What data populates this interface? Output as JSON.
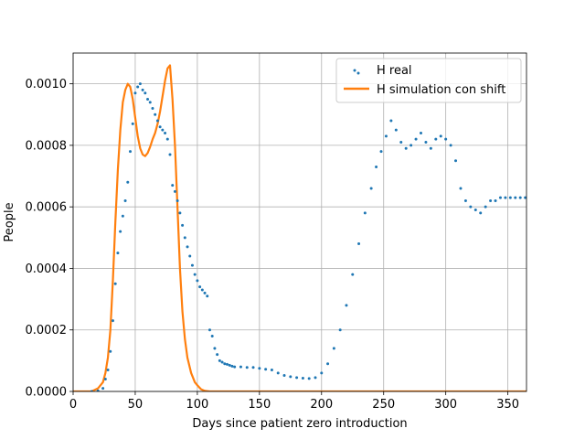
{
  "chart_data": {
    "type": "line",
    "xlabel": "Days since patient zero introduction",
    "ylabel": "People",
    "xlim": [
      0,
      365
    ],
    "ylim": [
      0,
      0.0011
    ],
    "x_ticks": [
      0,
      50,
      100,
      150,
      200,
      250,
      300,
      350
    ],
    "x_tick_labels": [
      "0",
      "50",
      "100",
      "150",
      "200",
      "250",
      "300",
      "350"
    ],
    "y_ticks": [
      0,
      0.0002,
      0.0004,
      0.0006,
      0.0008,
      0.001
    ],
    "y_tick_labels": [
      "0.0000",
      "0.0002",
      "0.0004",
      "0.0006",
      "0.0008",
      "0.0010"
    ],
    "grid": true,
    "legend_position": "top-right",
    "colors": {
      "real": "#1f77b4",
      "sim": "#ff7f0e"
    },
    "series": [
      {
        "name": "H real",
        "style": "scatter",
        "x": [
          15,
          20,
          24,
          26,
          28,
          30,
          32,
          34,
          36,
          38,
          40,
          42,
          44,
          46,
          48,
          50,
          52,
          54,
          56,
          58,
          60,
          62,
          64,
          66,
          68,
          70,
          72,
          74,
          76,
          78,
          80,
          82,
          84,
          86,
          88,
          90,
          92,
          94,
          96,
          98,
          100,
          102,
          104,
          106,
          108,
          110,
          112,
          114,
          116,
          118,
          120,
          122,
          124,
          126,
          128,
          130,
          135,
          140,
          145,
          150,
          155,
          160,
          165,
          170,
          175,
          180,
          185,
          190,
          195,
          200,
          205,
          210,
          215,
          220,
          225,
          230,
          235,
          240,
          244,
          248,
          252,
          256,
          260,
          264,
          268,
          272,
          276,
          280,
          284,
          288,
          292,
          296,
          300,
          304,
          308,
          312,
          316,
          320,
          324,
          328,
          332,
          336,
          340,
          344,
          348,
          352,
          356,
          360,
          364
        ],
        "y": [
          0,
          2e-06,
          1e-05,
          4e-05,
          7e-05,
          0.00013,
          0.00023,
          0.00035,
          0.00045,
          0.00052,
          0.00057,
          0.00062,
          0.00068,
          0.00078,
          0.00087,
          0.00097,
          0.00099,
          0.001,
          0.00098,
          0.00097,
          0.00095,
          0.00094,
          0.00092,
          0.0009,
          0.00088,
          0.00086,
          0.00085,
          0.00084,
          0.00082,
          0.00077,
          0.00067,
          0.00065,
          0.00062,
          0.00058,
          0.00054,
          0.0005,
          0.00047,
          0.00044,
          0.00041,
          0.00038,
          0.00036,
          0.00034,
          0.00033,
          0.00032,
          0.00031,
          0.0002,
          0.00018,
          0.00014,
          0.00012,
          0.0001,
          9.5e-05,
          9e-05,
          8.8e-05,
          8.5e-05,
          8.2e-05,
          8e-05,
          8e-05,
          7.8e-05,
          7.8e-05,
          7.5e-05,
          7.2e-05,
          7e-05,
          6e-05,
          5.2e-05,
          4.8e-05,
          4.5e-05,
          4.3e-05,
          4.2e-05,
          4.5e-05,
          6e-05,
          9e-05,
          0.00014,
          0.0002,
          0.00028,
          0.00038,
          0.00048,
          0.00058,
          0.00066,
          0.00073,
          0.00078,
          0.00083,
          0.00088,
          0.00085,
          0.00081,
          0.00079,
          0.0008,
          0.00082,
          0.00084,
          0.00081,
          0.00079,
          0.00082,
          0.00083,
          0.00082,
          0.0008,
          0.00075,
          0.00066,
          0.00062,
          0.0006,
          0.00059,
          0.00058,
          0.0006,
          0.00062,
          0.00062,
          0.00063,
          0.00063,
          0.00063,
          0.00063,
          0.00063,
          0.00063
        ],
        "n_visible": 109
      },
      {
        "name": "H simulation con shift",
        "style": "line",
        "x": [
          0,
          15,
          20,
          24,
          26,
          28,
          30,
          32,
          34,
          36,
          38,
          40,
          42,
          44,
          46,
          48,
          50,
          52,
          54,
          56,
          58,
          60,
          62,
          64,
          66,
          68,
          70,
          72,
          74,
          76,
          78,
          80,
          82,
          84,
          86,
          88,
          90,
          92,
          95,
          98,
          100,
          103,
          106,
          110,
          120,
          365
        ],
        "y": [
          0,
          5e-07,
          1e-05,
          3e-05,
          6e-05,
          0.00011,
          0.0002,
          0.00036,
          0.00055,
          0.00072,
          0.00085,
          0.00094,
          0.00098,
          0.001,
          0.00099,
          0.00095,
          0.00089,
          0.00083,
          0.00079,
          0.00077,
          0.000765,
          0.000775,
          0.000795,
          0.00082,
          0.00084,
          0.00087,
          0.00091,
          0.00096,
          0.00101,
          0.00105,
          0.00106,
          0.00095,
          0.0008,
          0.0006,
          0.0004,
          0.00026,
          0.00017,
          0.00011,
          6e-05,
          3e-05,
          2e-05,
          7e-06,
          2e-06,
          0,
          0,
          0
        ]
      }
    ]
  }
}
